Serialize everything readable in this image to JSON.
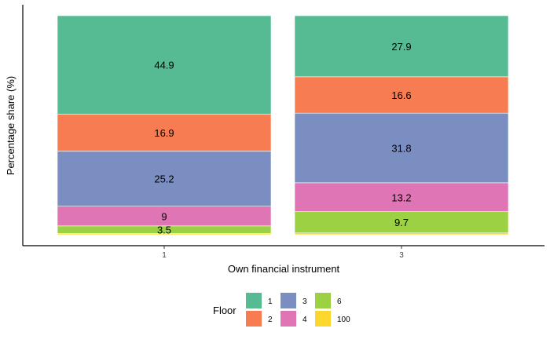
{
  "chart_data": {
    "type": "bar",
    "stacked": true,
    "categories": [
      "1",
      "3"
    ],
    "xlabel": "Own financial instrument",
    "ylabel": "Percentage share (%)",
    "ylim": [
      0,
      100
    ],
    "grid": false,
    "legend": {
      "title": "Floor",
      "placement": "bottom"
    },
    "series": [
      {
        "name": "1",
        "color": "#56BA93",
        "values": [
          44.9,
          27.9
        ],
        "labels": [
          "44.9",
          "27.9"
        ]
      },
      {
        "name": "2",
        "color": "#F77C52",
        "values": [
          16.9,
          16.6
        ],
        "labels": [
          "16.9",
          "16.6"
        ]
      },
      {
        "name": "3",
        "color": "#7B8EC1",
        "values": [
          25.2,
          31.8
        ],
        "labels": [
          "25.2",
          "31.8"
        ]
      },
      {
        "name": "4",
        "color": "#E075B6",
        "values": [
          9.0,
          13.2
        ],
        "labels": [
          "9",
          "13.2"
        ]
      },
      {
        "name": "6",
        "color": "#9CD143",
        "values": [
          3.5,
          9.7
        ],
        "labels": [
          "3.5",
          "9.7"
        ]
      },
      {
        "name": "100",
        "color": "#FCD82E",
        "values": [
          0.5,
          0.8
        ],
        "labels": [
          "",
          ""
        ]
      }
    ]
  }
}
